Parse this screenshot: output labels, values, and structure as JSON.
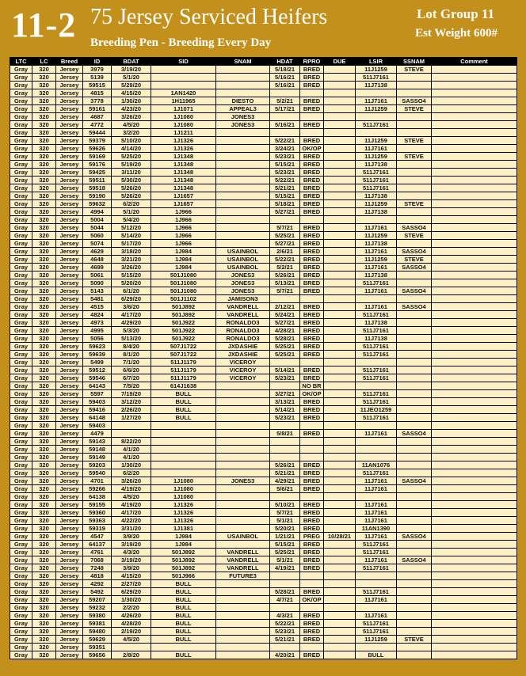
{
  "header": {
    "lot_number": "11-2",
    "title": "75 Jersey Serviced Heifers",
    "subtitle": "Breeding Pen - Breeding Every Day",
    "lot_group": "Lot Group 11",
    "est_weight": "Est Weight 600#"
  },
  "table": {
    "columns": [
      "LTC",
      "LC",
      "Breed",
      "ID",
      "BDAT",
      "SID",
      "SNAM",
      "HDAT",
      "RPRO",
      "DUE",
      "LSIR",
      "SSNAM",
      "Comment"
    ],
    "rows": [
      [
        "Gray",
        "320",
        "Jersey",
        "3979",
        "3/19/20",
        null,
        null,
        "5/18/21",
        "BRED",
        null,
        "11J1259",
        "STEVE",
        null
      ],
      [
        "Gray",
        "320",
        "Jersey",
        "5139",
        "5/1/20",
        null,
        null,
        "5/16/21",
        "BRED",
        null,
        "511J7161",
        null,
        null
      ],
      [
        "Gray",
        "320",
        "Jersey",
        "59515",
        "5/29/20",
        null,
        null,
        "5/16/21",
        "BRED",
        null,
        "11J7138",
        null,
        null
      ],
      [
        "Gray",
        "320",
        "Jersey",
        "4815",
        "4/15/20",
        "1AN1420",
        null,
        null,
        null,
        null,
        null,
        null,
        null
      ],
      [
        "Gray",
        "320",
        "Jersey",
        "3778",
        "1/30/20",
        "1H11965",
        "DIESTO",
        "5/2/21",
        "BRED",
        null,
        "11J7161",
        "SASSO4",
        null
      ],
      [
        "Gray",
        "320",
        "Jersey",
        "59161",
        "4/23/20",
        "1J1071",
        "APPEAL3",
        "5/17/21",
        "BRED",
        null,
        "11J1259",
        "STEVE",
        null
      ],
      [
        "Gray",
        "320",
        "Jersey",
        "4687",
        "3/26/20",
        "1J1080",
        "JONES3",
        null,
        null,
        null,
        null,
        null,
        null
      ],
      [
        "Gray",
        "320",
        "Jersey",
        "4772",
        "4/5/20",
        "1J1080",
        "JONES3",
        "5/16/21",
        "BRED",
        null,
        "511J7161",
        null,
        null
      ],
      [
        "Gray",
        "320",
        "Jersey",
        "59444",
        "3/2/20",
        "1J1211",
        null,
        null,
        null,
        null,
        null,
        null,
        null
      ],
      [
        "Gray",
        "320",
        "Jersey",
        "59379",
        "5/10/20",
        "1J1326",
        null,
        "5/22/21",
        "BRED",
        null,
        "11J1259",
        "STEVE",
        null
      ],
      [
        "Gray",
        "320",
        "Jersey",
        "59626",
        "4/14/20",
        "1J1326",
        null,
        "3/24/21",
        "OK/OP",
        null,
        "11J7161",
        null,
        null
      ],
      [
        "Gray",
        "320",
        "Jersey",
        "59169",
        "5/25/20",
        "1J1348",
        null,
        "5/23/21",
        "BRED",
        null,
        "11J1259",
        "STEVE",
        null
      ],
      [
        "Gray",
        "320",
        "Jersey",
        "59176",
        "5/19/20",
        "1J1348",
        null,
        "5/15/21",
        "BRED",
        null,
        "11J7138",
        null,
        null
      ],
      [
        "Gray",
        "320",
        "Jersey",
        "59425",
        "3/11/20",
        "1J1348",
        null,
        "5/23/21",
        "BRED",
        null,
        "511J7161",
        null,
        null
      ],
      [
        "Gray",
        "320",
        "Jersey",
        "59511",
        "5/30/20",
        "1J1348",
        null,
        "5/22/21",
        "BRED",
        null,
        "511J7161",
        null,
        null
      ],
      [
        "Gray",
        "320",
        "Jersey",
        "59518",
        "5/26/20",
        "1J1348",
        null,
        "5/21/21",
        "BRED",
        null,
        "511J7161",
        null,
        null
      ],
      [
        "Gray",
        "320",
        "Jersey",
        "59190",
        "5/26/20",
        "1J1657",
        null,
        "5/15/21",
        "BRED",
        null,
        "11J7138",
        null,
        null
      ],
      [
        "Gray",
        "320",
        "Jersey",
        "59632",
        "6/2/20",
        "1J1657",
        null,
        "5/18/21",
        "BRED",
        null,
        "11J1259",
        "STEVE",
        null
      ],
      [
        "Gray",
        "320",
        "Jersey",
        "4994",
        "5/1/20",
        "1J966",
        null,
        "5/27/21",
        "BRED",
        null,
        "11J7138",
        null,
        null
      ],
      [
        "Gray",
        "320",
        "Jersey",
        "5004",
        "5/4/20",
        "1J966",
        null,
        null,
        null,
        null,
        null,
        null,
        null
      ],
      [
        "Gray",
        "320",
        "Jersey",
        "5044",
        "5/12/20",
        "1J966",
        null,
        "5/7/21",
        "BRED",
        null,
        "11J7161",
        "SASSO4",
        null
      ],
      [
        "Gray",
        "320",
        "Jersey",
        "5060",
        "5/14/20",
        "1J966",
        null,
        "5/25/21",
        "BRED",
        null,
        "11J1259",
        "STEVE",
        null
      ],
      [
        "Gray",
        "320",
        "Jersey",
        "5074",
        "5/17/20",
        "1J966",
        null,
        "5/27/21",
        "BRED",
        null,
        "11J7138",
        null,
        null
      ],
      [
        "Gray",
        "320",
        "Jersey",
        "4629",
        "3/18/20",
        "1J984",
        "USAINBOL",
        "2/6/21",
        "BRED",
        null,
        "11J7161",
        "SASSO4",
        null
      ],
      [
        "Gray",
        "320",
        "Jersey",
        "4648",
        "3/21/20",
        "1J984",
        "USAINBOL",
        "5/22/21",
        "BRED",
        null,
        "11J1259",
        "STEVE",
        null
      ],
      [
        "Gray",
        "320",
        "Jersey",
        "4699",
        "3/26/20",
        "1J984",
        "USAINBOL",
        "5/2/21",
        "BRED",
        null,
        "11J7161",
        "SASSO4",
        null
      ],
      [
        "Gray",
        "320",
        "Jersey",
        "5061",
        "5/15/20",
        "501J1080",
        "JONES3",
        "5/26/21",
        "BRED",
        null,
        "11J7138",
        null,
        null
      ],
      [
        "Gray",
        "320",
        "Jersey",
        "5090",
        "5/20/20",
        "501J1080",
        "JONES3",
        "5/13/21",
        "BRED",
        null,
        "511J7161",
        null,
        null
      ],
      [
        "Gray",
        "320",
        "Jersey",
        "5143",
        "6/1/20",
        "501J1080",
        "JONES3",
        "5/7/21",
        "BRED",
        null,
        "11J7161",
        "SASSO4",
        null
      ],
      [
        "Gray",
        "320",
        "Jersey",
        "5481",
        "6/29/20",
        "501J1102",
        "JAMISON3",
        null,
        null,
        null,
        null,
        null,
        null
      ],
      [
        "Gray",
        "320",
        "Jersey",
        "4515",
        "3/6/20",
        "501J892",
        "VANDRELL",
        "2/12/21",
        "BRED",
        null,
        "11J7161",
        "SASSO4",
        null
      ],
      [
        "Gray",
        "320",
        "Jersey",
        "4824",
        "4/17/20",
        "501J892",
        "VANDRELL",
        "5/24/21",
        "BRED",
        null,
        "511J7161",
        null,
        null
      ],
      [
        "Gray",
        "320",
        "Jersey",
        "4973",
        "4/29/20",
        "501J922",
        "RONALDO3",
        "5/27/21",
        "BRED",
        null,
        "11J7138",
        null,
        null
      ],
      [
        "Gray",
        "320",
        "Jersey",
        "4995",
        "5/3/20",
        "501J922",
        "RONALDO3",
        "4/28/21",
        "BRED",
        null,
        "511J7161",
        null,
        null
      ],
      [
        "Gray",
        "320",
        "Jersey",
        "5056",
        "5/13/20",
        "501J922",
        "RONALDO3",
        "5/28/21",
        "BRED",
        null,
        "11J7138",
        null,
        null
      ],
      [
        "Gray",
        "320",
        "Jersey",
        "59623",
        "8/4/20",
        "507J1722",
        "JXDASHIE",
        "5/25/21",
        "BRED",
        null,
        "511J7161",
        null,
        null
      ],
      [
        "Gray",
        "320",
        "Jersey",
        "59639",
        "8/1/20",
        "507J1722",
        "JXDASHIE",
        "5/25/21",
        "BRED",
        null,
        "511J7161",
        null,
        null
      ],
      [
        "Gray",
        "320",
        "Jersey",
        "5499",
        "7/1/20",
        "511J1179",
        "VICEROY",
        null,
        null,
        null,
        null,
        null,
        null
      ],
      [
        "Gray",
        "320",
        "Jersey",
        "59512",
        "6/6/20",
        "511J1179",
        "VICEROY",
        "5/14/21",
        "BRED",
        null,
        "511J7161",
        null,
        null
      ],
      [
        "Gray",
        "320",
        "Jersey",
        "59546",
        "6/7/20",
        "511J1179",
        "VICEROY",
        "5/23/21",
        "BRED",
        null,
        "511J7161",
        null,
        null
      ],
      [
        "Gray",
        "320",
        "Jersey",
        "64143",
        "7/5/20",
        "614J1638",
        null,
        null,
        "NO BR",
        null,
        null,
        null,
        null
      ],
      [
        "Gray",
        "320",
        "Jersey",
        "5597",
        "7/19/20",
        "BULL",
        null,
        "3/27/21",
        "OK/OP",
        null,
        "511J7161",
        null,
        null
      ],
      [
        "Gray",
        "320",
        "Jersey",
        "59403",
        "3/12/20",
        "BULL",
        null,
        "3/13/21",
        "BRED",
        null,
        "511J7161",
        null,
        null
      ],
      [
        "Gray",
        "320",
        "Jersey",
        "59416",
        "2/26/20",
        "BULL",
        null,
        "5/14/21",
        "BRED",
        null,
        "11JEO1259",
        null,
        null
      ],
      [
        "Gray",
        "320",
        "Jersey",
        "64148",
        "1/27/20",
        "BULL",
        null,
        "5/23/21",
        "BRED",
        null,
        "511J7161",
        null,
        null
      ],
      [
        "Gray",
        "320",
        "Jersey",
        "59403",
        null,
        null,
        null,
        null,
        null,
        null,
        null,
        null,
        null
      ],
      [
        "Gray",
        "320",
        "Jersey",
        "4479",
        null,
        null,
        null,
        "5/8/21",
        "BRED",
        null,
        "11J7161",
        "SASSO4",
        null
      ],
      [
        "Gray",
        "320",
        "Jersey",
        "59143",
        "8/22/20",
        null,
        null,
        null,
        null,
        null,
        null,
        null,
        null
      ],
      [
        "Gray",
        "320",
        "Jersey",
        "59148",
        "4/1/20",
        null,
        null,
        null,
        null,
        null,
        null,
        null,
        null
      ],
      [
        "Gray",
        "320",
        "Jersey",
        "59149",
        "4/1/20",
        null,
        null,
        null,
        null,
        null,
        null,
        null,
        null
      ],
      [
        "Gray",
        "320",
        "Jersey",
        "59203",
        "1/30/20",
        null,
        null,
        "5/26/21",
        "BRED",
        null,
        "11AN1076",
        null,
        null
      ],
      [
        "Gray",
        "320",
        "Jersey",
        "59540",
        "6/2/20",
        null,
        null,
        "5/21/21",
        "BRED",
        null,
        "511J7161",
        null,
        null
      ],
      [
        "Gray",
        "320",
        "Jersey",
        "4701",
        "3/26/20",
        "1J1080",
        "JONES3",
        "4/29/21",
        "BRED",
        null,
        "11J7161",
        "SASSO4",
        null
      ],
      [
        "Gray",
        "320",
        "Jersey",
        "59266",
        "4/19/20",
        "1J1080",
        null,
        "5/6/21",
        "BRED",
        null,
        "11J7161",
        null,
        null
      ],
      [
        "Gray",
        "320",
        "Jersey",
        "64138",
        "4/5/20",
        "1J1080",
        null,
        null,
        null,
        null,
        null,
        null,
        null
      ],
      [
        "Gray",
        "320",
        "Jersey",
        "59155",
        "4/19/20",
        "1J1326",
        null,
        "5/10/21",
        "BRED",
        null,
        "11J7161",
        null,
        null
      ],
      [
        "Gray",
        "320",
        "Jersey",
        "59360",
        "4/17/20",
        "1J1326",
        null,
        "5/7/21",
        "BRED",
        null,
        "11J7161",
        null,
        null
      ],
      [
        "Gray",
        "320",
        "Jersey",
        "59363",
        "4/22/20",
        "1J1326",
        null,
        "5/1/21",
        "BRED",
        null,
        "11J7161",
        null,
        null
      ],
      [
        "Gray",
        "320",
        "Jersey",
        "59319",
        "3/31/20",
        "1J1381",
        null,
        "5/20/21",
        "BRED",
        null,
        "11AN1390",
        null,
        null
      ],
      [
        "Gray",
        "320",
        "Jersey",
        "4547",
        "3/9/20",
        "1J984",
        "USAINBOL",
        "1/21/21",
        "PREG",
        "10/28/21",
        "11J7161",
        "SASSO4",
        null
      ],
      [
        "Gray",
        "320",
        "Jersey",
        "64137",
        "3/19/20",
        "1J984",
        null,
        "5/15/21",
        "BRED",
        null,
        "511J7161",
        null,
        null
      ],
      [
        "Gray",
        "320",
        "Jersey",
        "4761",
        "4/3/20",
        "501J892",
        "VANDRELL",
        "5/25/21",
        "BRED",
        null,
        "511J7161",
        null,
        null
      ],
      [
        "Gray",
        "320",
        "Jersey",
        "7068",
        "3/19/20",
        "501J892",
        "VANDRELL",
        "5/1/21",
        "BRED",
        null,
        "11J7161",
        "SASSO4",
        null
      ],
      [
        "Gray",
        "320",
        "Jersey",
        "7248",
        "3/9/20",
        "501J892",
        "VANDRELL",
        "4/19/21",
        "BRED",
        null,
        "511J7161",
        null,
        null
      ],
      [
        "Gray",
        "320",
        "Jersey",
        "4818",
        "4/15/20",
        "501J966",
        "FUTURE3",
        null,
        null,
        null,
        null,
        null,
        null
      ],
      [
        "Gray",
        "320",
        "Jersey",
        "4292",
        "2/27/20",
        "BULL",
        null,
        null,
        null,
        null,
        null,
        null,
        null
      ],
      [
        "Gray",
        "320",
        "Jersey",
        "5492",
        "6/29/20",
        "BULL",
        null,
        "5/28/21",
        "BRED",
        null,
        "511J7161",
        null,
        null
      ],
      [
        "Gray",
        "320",
        "Jersey",
        "59207",
        "1/30/20",
        "BULL",
        null,
        "4/7/21",
        "OK/OP",
        null,
        "11J7161",
        null,
        null
      ],
      [
        "Gray",
        "320",
        "Jersey",
        "59232",
        "2/2/20",
        "BULL",
        null,
        null,
        null,
        null,
        null,
        null,
        null
      ],
      [
        "Gray",
        "320",
        "Jersey",
        "59380",
        "4/26/20",
        "BULL",
        null,
        "4/3/21",
        "BRED",
        null,
        "11J7161",
        null,
        null
      ],
      [
        "Gray",
        "320",
        "Jersey",
        "59381",
        "4/28/20",
        "BULL",
        null,
        "5/22/21",
        "BRED",
        null,
        "511J7161",
        null,
        null
      ],
      [
        "Gray",
        "320",
        "Jersey",
        "59480",
        "2/19/20",
        "BULL",
        null,
        "5/23/21",
        "BRED",
        null,
        "511J7161",
        null,
        null
      ],
      [
        "Gray",
        "320",
        "Jersey",
        "59629",
        "4/5/20",
        "BULL",
        null,
        "5/21/21",
        "BRED",
        null,
        "11J1259",
        "STEVE",
        null
      ],
      [
        "Gray",
        "320",
        "Jersey",
        "59351",
        null,
        null,
        null,
        null,
        null,
        null,
        null,
        null,
        null
      ],
      [
        "Gray",
        "320",
        "Jersey",
        "59656",
        "2/8/20",
        "BULL",
        null,
        "4/20/21",
        "BRED",
        null,
        "BULL",
        null,
        null
      ]
    ]
  }
}
